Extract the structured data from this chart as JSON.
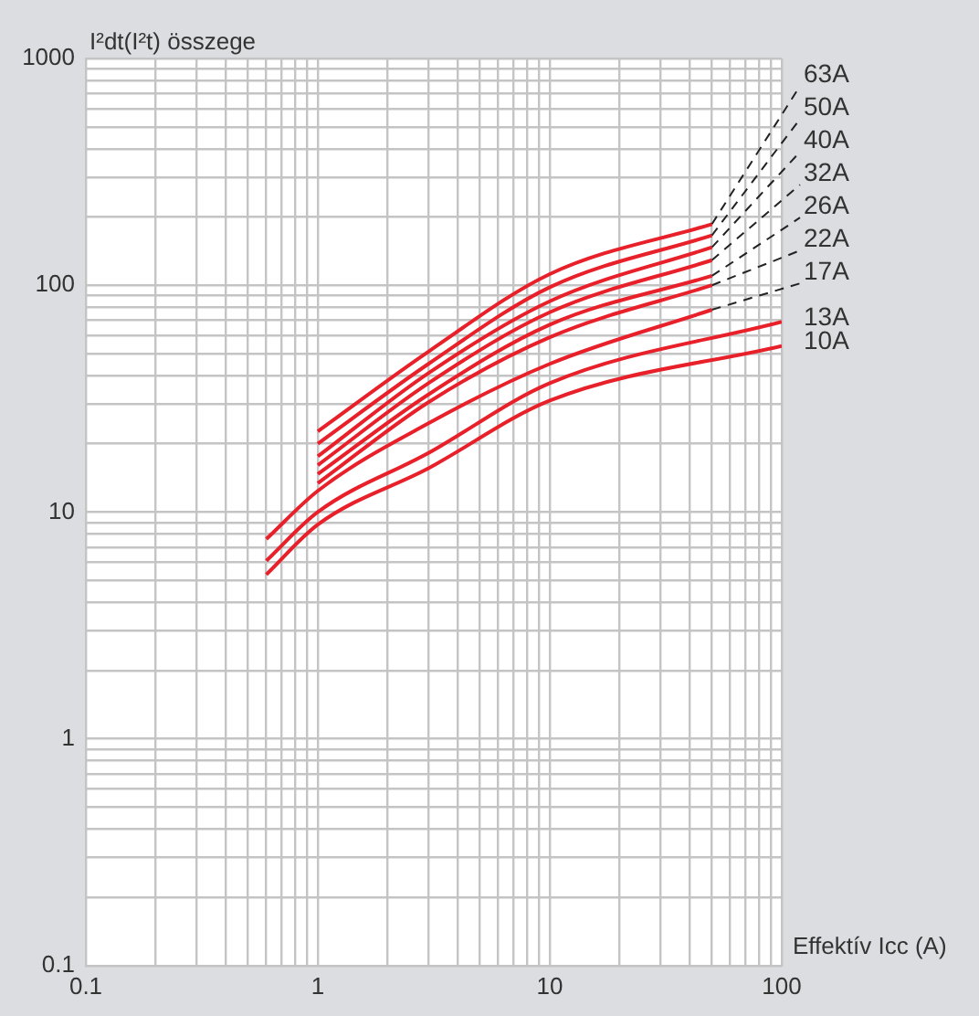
{
  "chart_data": {
    "type": "line",
    "xlabel": "Effektív Icc (A)",
    "ylabel": "I²dt(I²t) összege",
    "log": "xy",
    "grid": true,
    "legend": false,
    "marker": "none",
    "line_style": "solid",
    "xlim": [
      0.1,
      100
    ],
    "ylim": [
      0.1,
      1000
    ],
    "xticks": [
      0.1,
      1,
      10,
      100
    ],
    "yticks": [
      0.1,
      1,
      10,
      100,
      1000
    ],
    "series": [
      {
        "name": "63A",
        "color": "#e8202a",
        "x": [
          1,
          3,
          10,
          50
        ],
        "values": [
          22.7,
          51,
          112,
          186
        ]
      },
      {
        "name": "50A",
        "color": "#e8202a",
        "x": [
          1,
          3,
          10,
          50
        ],
        "values": [
          20,
          45,
          98,
          166
        ]
      },
      {
        "name": "40A",
        "color": "#e8202a",
        "x": [
          1,
          3,
          10,
          50
        ],
        "values": [
          17.6,
          41,
          85,
          147
        ]
      },
      {
        "name": "32A",
        "color": "#e8202a",
        "x": [
          1,
          3,
          10,
          50
        ],
        "values": [
          16.1,
          37,
          76,
          129
        ]
      },
      {
        "name": "26A",
        "color": "#e8202a",
        "x": [
          1,
          3,
          10,
          50
        ],
        "values": [
          14.7,
          33,
          67,
          110
        ]
      },
      {
        "name": "22A",
        "color": "#e8202a",
        "x": [
          1,
          3,
          10,
          50
        ],
        "values": [
          13.4,
          30.5,
          59,
          100
        ]
      },
      {
        "name": "17A",
        "color": "#e8202a",
        "x": [
          0.6,
          1,
          3,
          10,
          50
        ],
        "values": [
          7.6,
          12.4,
          24.6,
          45,
          78
        ]
      },
      {
        "name": "13A",
        "color": "#e8202a",
        "x": [
          0.6,
          1,
          3,
          10,
          100
        ],
        "values": [
          6.1,
          10,
          18.2,
          37,
          69
        ]
      },
      {
        "name": "10A",
        "color": "#e8202a",
        "x": [
          0.6,
          1,
          3,
          10,
          100
        ],
        "values": [
          5.3,
          8.8,
          15.6,
          31,
          54
        ]
      }
    ]
  }
}
